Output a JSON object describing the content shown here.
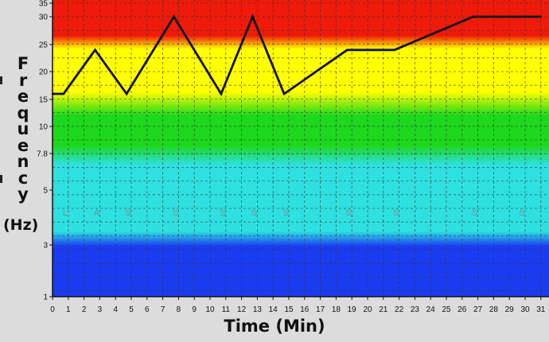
{
  "chart_data": {
    "type": "line",
    "xlabel": "Time (Min)",
    "ylabel_letters": [
      "F",
      "r",
      "e",
      "q",
      "u",
      "e",
      "n",
      "c",
      "y"
    ],
    "yunit": "(Hz)",
    "x_ticks": [
      "0",
      "1",
      "2",
      "3",
      "4",
      "5",
      "6",
      "7",
      "8",
      "9",
      "10",
      "11",
      "12",
      "13",
      "14",
      "15",
      "16",
      "17",
      "18",
      "19",
      "20",
      "21",
      "22",
      "23",
      "24",
      "25",
      "26",
      "27",
      "28",
      "29",
      "30",
      "31"
    ],
    "y_ticks": [
      "1",
      "3",
      "5",
      "7.8",
      "10",
      "15",
      "20",
      "25",
      "30",
      "35"
    ],
    "xlim": [
      0,
      31
    ],
    "bands": [
      {
        "name": "red",
        "color": "#ee1a0a"
      },
      {
        "name": "yellow",
        "color": "#ffff00"
      },
      {
        "name": "green",
        "color": "#1dd81d"
      },
      {
        "name": "cyan",
        "color": "#2ee0e0"
      },
      {
        "name": "blue",
        "color": "#1a3cf0"
      }
    ],
    "markers": [
      {
        "label": "L",
        "x": 0.4
      },
      {
        "label": "A",
        "x": 2.4
      },
      {
        "label": "S",
        "x": 4.4
      },
      {
        "label": "S",
        "x": 7.4
      },
      {
        "label": "S",
        "x": 10.4
      },
      {
        "label": "S",
        "x": 12.4
      },
      {
        "label": "S",
        "x": 14.4
      },
      {
        "label": "S",
        "x": 18.4
      },
      {
        "label": "S",
        "x": 21.4
      },
      {
        "label": "S",
        "x": 26.4
      },
      {
        "label": "S",
        "x": 29.4
      }
    ],
    "series": [
      {
        "x": [
          0,
          0.7,
          2.7,
          4.7,
          7.7,
          10.7,
          12.7,
          14.7,
          18.7,
          21.7,
          26.7,
          31
        ],
        "y": [
          16,
          16,
          24,
          16,
          30,
          16,
          30,
          16,
          24,
          24,
          30,
          30
        ]
      }
    ]
  }
}
